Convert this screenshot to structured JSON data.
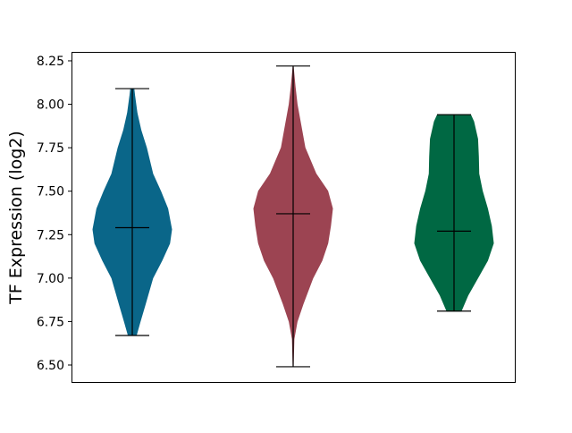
{
  "chart_data": {
    "type": "violin",
    "title": "",
    "xlabel": "",
    "ylabel": "TF Expression (log2)",
    "ylim": [
      6.4,
      8.3
    ],
    "yticks": [
      "6.50",
      "6.75",
      "7.00",
      "7.25",
      "7.50",
      "7.75",
      "8.00",
      "8.25"
    ],
    "grid": false,
    "series": [
      {
        "color": "#0a6689",
        "min": 6.67,
        "max": 8.09,
        "median": 7.29,
        "density": [
          [
            6.67,
            0.1
          ],
          [
            6.75,
            0.2
          ],
          [
            6.85,
            0.33
          ],
          [
            7.0,
            0.52
          ],
          [
            7.1,
            0.75
          ],
          [
            7.2,
            0.95
          ],
          [
            7.28,
            1.0
          ],
          [
            7.4,
            0.9
          ],
          [
            7.5,
            0.72
          ],
          [
            7.6,
            0.52
          ],
          [
            7.75,
            0.36
          ],
          [
            7.85,
            0.22
          ],
          [
            7.95,
            0.12
          ],
          [
            8.05,
            0.06
          ],
          [
            8.09,
            0.04
          ]
        ]
      },
      {
        "color": "#9c4452",
        "min": 6.49,
        "max": 8.22,
        "median": 7.37,
        "density": [
          [
            6.49,
            0.0
          ],
          [
            6.65,
            0.02
          ],
          [
            6.75,
            0.1
          ],
          [
            6.85,
            0.25
          ],
          [
            7.0,
            0.5
          ],
          [
            7.1,
            0.73
          ],
          [
            7.2,
            0.88
          ],
          [
            7.3,
            0.95
          ],
          [
            7.4,
            1.0
          ],
          [
            7.5,
            0.88
          ],
          [
            7.6,
            0.58
          ],
          [
            7.75,
            0.3
          ],
          [
            7.9,
            0.18
          ],
          [
            8.0,
            0.1
          ],
          [
            8.1,
            0.05
          ],
          [
            8.22,
            0.0
          ]
        ]
      },
      {
        "color": "#006843",
        "min": 6.81,
        "max": 7.94,
        "median": 7.27,
        "density": [
          [
            6.81,
            0.18
          ],
          [
            6.9,
            0.35
          ],
          [
            7.0,
            0.6
          ],
          [
            7.1,
            0.85
          ],
          [
            7.2,
            1.0
          ],
          [
            7.3,
            0.95
          ],
          [
            7.4,
            0.85
          ],
          [
            7.5,
            0.72
          ],
          [
            7.6,
            0.63
          ],
          [
            7.7,
            0.62
          ],
          [
            7.8,
            0.6
          ],
          [
            7.9,
            0.5
          ],
          [
            7.94,
            0.42
          ]
        ]
      }
    ]
  }
}
